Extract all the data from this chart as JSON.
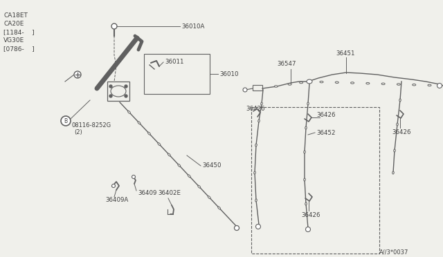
{
  "bg_color": "#f0f0eb",
  "line_color": "#606060",
  "text_color": "#404040",
  "ref_number": "A//3*0037",
  "model_labels": [
    "CA18ET",
    "CA20E",
    "[1184-    ]",
    "VG30E",
    "[0786-    ]"
  ]
}
